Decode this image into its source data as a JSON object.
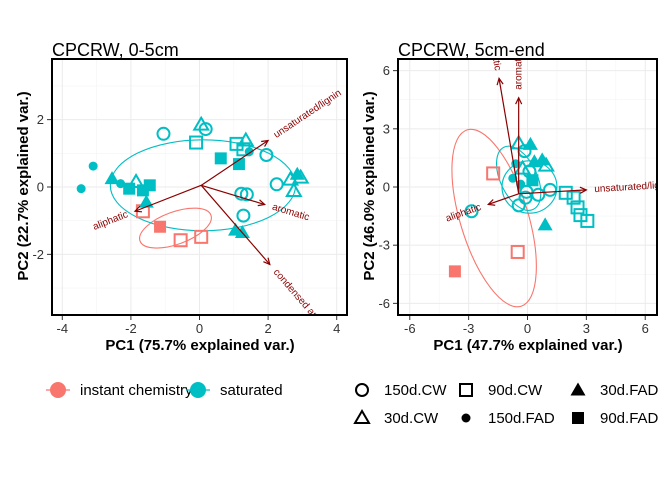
{
  "chart_data": [
    {
      "type": "scatter",
      "title": "CPCRW, 0-5cm",
      "xlabel": "PC1 (75.7% explained var.)",
      "ylabel": "PC2 (22.7% explained var.)",
      "xlim": [
        -4.3,
        4.3
      ],
      "ylim": [
        -3.8,
        3.8
      ],
      "xticks": [
        -4,
        -2,
        0,
        2,
        4
      ],
      "yticks": [
        -2,
        0,
        2
      ],
      "grid": true,
      "points": [
        {
          "x": -1.15,
          "y": -1.18,
          "group": "instant chemistry",
          "treatment": "90d.FAD"
        },
        {
          "x": -0.55,
          "y": -1.58,
          "group": "instant chemistry",
          "treatment": "90d.CW"
        },
        {
          "x": 0.05,
          "y": -1.48,
          "group": "instant chemistry",
          "treatment": "90d.CW"
        },
        {
          "x": -1.65,
          "y": -0.72,
          "group": "instant chemistry",
          "treatment": "90d.CW"
        },
        {
          "x": -3.45,
          "y": -0.05,
          "group": "saturated",
          "treatment": "150d.FAD"
        },
        {
          "x": -3.1,
          "y": 0.62,
          "group": "saturated",
          "treatment": "150d.FAD"
        },
        {
          "x": -2.55,
          "y": 0.25,
          "group": "saturated",
          "treatment": "30d.FAD"
        },
        {
          "x": -2.3,
          "y": 0.1,
          "group": "saturated",
          "treatment": "150d.FAD"
        },
        {
          "x": -2.05,
          "y": -0.05,
          "group": "saturated",
          "treatment": "90d.FAD"
        },
        {
          "x": -1.85,
          "y": 0.15,
          "group": "saturated",
          "treatment": "30d.CW"
        },
        {
          "x": -1.65,
          "y": -0.1,
          "group": "saturated",
          "treatment": "90d.FAD"
        },
        {
          "x": -1.45,
          "y": 0.05,
          "group": "saturated",
          "treatment": "90d.FAD"
        },
        {
          "x": -1.55,
          "y": -0.45,
          "group": "saturated",
          "treatment": "30d.FAD"
        },
        {
          "x": -1.05,
          "y": 1.58,
          "group": "saturated",
          "treatment": "150d.CW"
        },
        {
          "x": -0.1,
          "y": 1.32,
          "group": "saturated",
          "treatment": "90d.CW"
        },
        {
          "x": 0.05,
          "y": 1.85,
          "group": "saturated",
          "treatment": "30d.CW"
        },
        {
          "x": 0.18,
          "y": 1.72,
          "group": "saturated",
          "treatment": "150d.CW"
        },
        {
          "x": 0.62,
          "y": 0.85,
          "group": "saturated",
          "treatment": "90d.FAD"
        },
        {
          "x": 1.08,
          "y": 1.28,
          "group": "saturated",
          "treatment": "90d.CW"
        },
        {
          "x": 1.28,
          "y": 1.12,
          "group": "saturated",
          "treatment": "90d.CW"
        },
        {
          "x": 1.35,
          "y": 1.38,
          "group": "saturated",
          "treatment": "30d.CW"
        },
        {
          "x": 1.15,
          "y": 0.68,
          "group": "saturated",
          "treatment": "90d.FAD"
        },
        {
          "x": 1.45,
          "y": 1.05,
          "group": "saturated",
          "treatment": "150d.FAD"
        },
        {
          "x": 1.95,
          "y": 0.95,
          "group": "saturated",
          "treatment": "150d.CW"
        },
        {
          "x": 1.22,
          "y": -0.2,
          "group": "saturated",
          "treatment": "150d.CW"
        },
        {
          "x": 1.38,
          "y": -0.22,
          "group": "saturated",
          "treatment": "150d.CW"
        },
        {
          "x": 1.28,
          "y": -0.85,
          "group": "saturated",
          "treatment": "150d.CW"
        },
        {
          "x": 1.05,
          "y": -1.28,
          "group": "saturated",
          "treatment": "30d.FAD"
        },
        {
          "x": 1.25,
          "y": -1.35,
          "group": "saturated",
          "treatment": "30d.FAD"
        },
        {
          "x": 2.25,
          "y": 0.08,
          "group": "saturated",
          "treatment": "150d.CW"
        },
        {
          "x": 2.65,
          "y": 0.22,
          "group": "saturated",
          "treatment": "30d.CW"
        },
        {
          "x": 2.75,
          "y": -0.12,
          "group": "saturated",
          "treatment": "30d.CW"
        },
        {
          "x": 2.85,
          "y": 0.38,
          "group": "saturated",
          "treatment": "30d.FAD"
        },
        {
          "x": 2.95,
          "y": 0.28,
          "group": "saturated",
          "treatment": "30d.CW"
        }
      ],
      "ellipses": [
        {
          "group": "instant chemistry",
          "cx": -0.7,
          "cy": -1.22,
          "rx": 1.1,
          "ry": 0.48,
          "angle_deg": 20
        },
        {
          "group": "saturated",
          "cx": 0.1,
          "cy": 0.05,
          "rx": 2.7,
          "ry": 1.35,
          "angle_deg": 0
        }
      ],
      "loadings": [
        {
          "label": "unsaturated/lignin",
          "x": 2.0,
          "y": 1.38
        },
        {
          "label": "aromatic",
          "x": 1.9,
          "y": -0.52
        },
        {
          "label": "aliphatic",
          "x": -1.88,
          "y": -0.72
        },
        {
          "label": "condensed aromatic",
          "x": 2.05,
          "y": -2.3
        }
      ],
      "loading_origin": [
        0.05,
        0.05
      ]
    },
    {
      "type": "scatter",
      "title": "CPCRW, 5cm-end",
      "xlabel": "PC1 (47.7% explained var.)",
      "ylabel": "PC2 (46.0% explained var.)",
      "xlim": [
        -6.6,
        6.6
      ],
      "ylim": [
        -6.6,
        6.6
      ],
      "xticks": [
        -6,
        -3,
        0,
        3,
        6
      ],
      "yticks": [
        -6,
        -3,
        0,
        3,
        6
      ],
      "grid": true,
      "points": [
        {
          "x": -3.7,
          "y": -4.35,
          "group": "instant chemistry",
          "treatment": "90d.FAD"
        },
        {
          "x": -0.5,
          "y": -3.35,
          "group": "instant chemistry",
          "treatment": "90d.CW"
        },
        {
          "x": -1.75,
          "y": 0.7,
          "group": "instant chemistry",
          "treatment": "90d.CW"
        },
        {
          "x": -2.85,
          "y": -1.25,
          "group": "saturated",
          "treatment": "150d.CW"
        },
        {
          "x": -0.45,
          "y": 2.25,
          "group": "saturated",
          "treatment": "30d.CW"
        },
        {
          "x": -0.15,
          "y": 1.85,
          "group": "saturated",
          "treatment": "150d.CW"
        },
        {
          "x": 0.15,
          "y": 2.2,
          "group": "saturated",
          "treatment": "30d.FAD"
        },
        {
          "x": -0.6,
          "y": 1.2,
          "group": "saturated",
          "treatment": "150d.FAD"
        },
        {
          "x": -0.25,
          "y": 0.95,
          "group": "saturated",
          "treatment": "30d.CW"
        },
        {
          "x": 0.1,
          "y": 0.8,
          "group": "saturated",
          "treatment": "150d.CW"
        },
        {
          "x": 0.35,
          "y": 1.3,
          "group": "saturated",
          "treatment": "30d.FAD"
        },
        {
          "x": 0.75,
          "y": 1.4,
          "group": "saturated",
          "treatment": "30d.FAD"
        },
        {
          "x": 0.95,
          "y": 1.1,
          "group": "saturated",
          "treatment": "30d.CW"
        },
        {
          "x": -0.75,
          "y": 0.45,
          "group": "saturated",
          "treatment": "150d.FAD"
        },
        {
          "x": -0.35,
          "y": 0.15,
          "group": "saturated",
          "treatment": "150d.FAD"
        },
        {
          "x": -0.05,
          "y": -0.25,
          "group": "saturated",
          "treatment": "150d.CW"
        },
        {
          "x": 0.25,
          "y": 0.35,
          "group": "saturated",
          "treatment": "90d.FAD"
        },
        {
          "x": -0.45,
          "y": -0.95,
          "group": "saturated",
          "treatment": "150d.CW"
        },
        {
          "x": -0.1,
          "y": -0.55,
          "group": "saturated",
          "treatment": "150d.CW"
        },
        {
          "x": 0.55,
          "y": -0.4,
          "group": "saturated",
          "treatment": "150d.CW"
        },
        {
          "x": 1.15,
          "y": -0.15,
          "group": "saturated",
          "treatment": "150d.CW"
        },
        {
          "x": 1.95,
          "y": -0.3,
          "group": "saturated",
          "treatment": "90d.CW"
        },
        {
          "x": 2.35,
          "y": -0.55,
          "group": "saturated",
          "treatment": "90d.CW"
        },
        {
          "x": 2.55,
          "y": -1.05,
          "group": "saturated",
          "treatment": "90d.CW"
        },
        {
          "x": 2.7,
          "y": -1.45,
          "group": "saturated",
          "treatment": "90d.CW"
        },
        {
          "x": 3.05,
          "y": -1.75,
          "group": "saturated",
          "treatment": "90d.CW"
        },
        {
          "x": 0.9,
          "y": -1.95,
          "group": "saturated",
          "treatment": "30d.FAD"
        }
      ],
      "ellipses": [
        {
          "group": "instant chemistry",
          "cx": -1.7,
          "cy": -1.6,
          "rx": 4.7,
          "ry": 1.75,
          "angle_deg": 107
        },
        {
          "group": "saturated",
          "cx": 0.1,
          "cy": 0.0,
          "rx": 1.4,
          "ry": 1.35,
          "angle_deg": 0
        },
        {
          "group": "saturated",
          "cx": -0.45,
          "cy": 0.45,
          "rx": 1.75,
          "ry": 0.95,
          "angle_deg": -65
        }
      ],
      "loadings": [
        {
          "label": "condensed aromatic",
          "x": -1.45,
          "y": 5.6
        },
        {
          "label": "aromatic",
          "x": -0.45,
          "y": 4.6
        },
        {
          "label": "unsaturated/lignin",
          "x": 3.0,
          "y": -0.15
        },
        {
          "label": "aliphatic",
          "x": -2.0,
          "y": -0.9
        }
      ],
      "loading_origin": [
        -0.45,
        -0.35
      ]
    }
  ],
  "legend": {
    "groups": [
      {
        "label": "instant chemistry",
        "color": "#F8766D"
      },
      {
        "label": "saturated",
        "color": "#00BFC4"
      }
    ],
    "treatments": [
      {
        "label": "150d.CW",
        "shape": "open-circle"
      },
      {
        "label": "90d.CW",
        "shape": "open-square"
      },
      {
        "label": "30d.FAD",
        "shape": "filled-triangle"
      },
      {
        "label": "30d.CW",
        "shape": "open-triangle"
      },
      {
        "label": "150d.FAD",
        "shape": "filled-circle"
      },
      {
        "label": "90d.FAD",
        "shape": "filled-square"
      }
    ]
  },
  "colors": {
    "instant chemistry": "#F8766D",
    "saturated": "#00BFC4",
    "loading": "#8b0000"
  }
}
